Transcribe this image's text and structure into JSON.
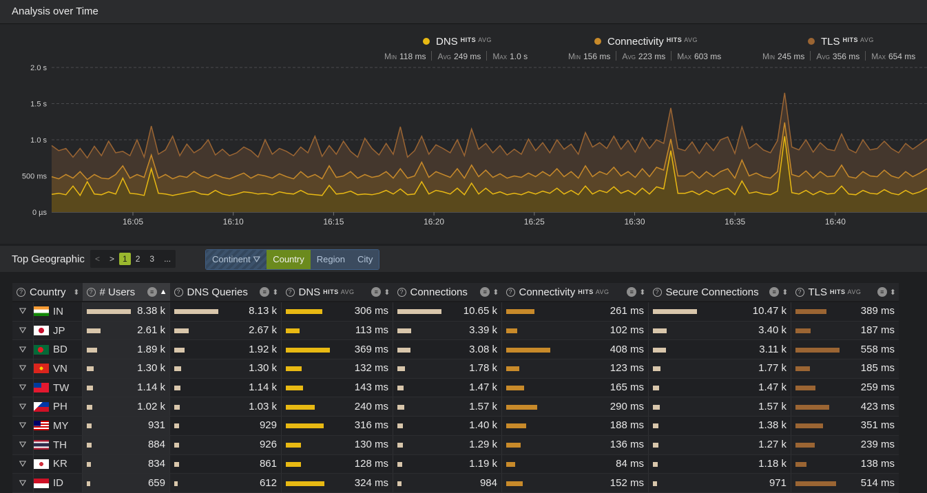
{
  "panel_title": "Analysis over Time",
  "legend": [
    {
      "name": "DNS",
      "sup": "HITS",
      "sup2": "AVG",
      "color": "#e8b913",
      "min": "118 ms",
      "avg": "249 ms",
      "max": "1.0 s"
    },
    {
      "name": "Connectivity",
      "sup": "HITS",
      "sup2": "AVG",
      "color": "#c88a2a",
      "min": "156 ms",
      "avg": "223 ms",
      "max": "603 ms"
    },
    {
      "name": "TLS",
      "sup": "HITS",
      "sup2": "AVG",
      "color": "#9b6533",
      "min": "245 ms",
      "avg": "356 ms",
      "max": "654 ms"
    }
  ],
  "stat_labels": {
    "min": "Min",
    "avg": "Avg",
    "max": "Max"
  },
  "chart_data": {
    "type": "area",
    "y_ticks": [
      "2.0 s",
      "1.5 s",
      "1.0 s",
      "500 ms",
      "0 µs"
    ],
    "y_tick_values": [
      2000,
      1500,
      1000,
      500,
      0
    ],
    "x_ticks": [
      "16:05",
      "16:10",
      "16:15",
      "16:20",
      "16:25",
      "16:30",
      "16:35",
      "16:40"
    ],
    "ylim": [
      0,
      2000
    ],
    "series": [
      {
        "name": "DNS",
        "color": "#e8b913",
        "values": [
          245,
          260,
          240,
          360,
          230,
          420,
          250,
          240,
          280,
          250,
          470,
          260,
          250,
          230,
          600,
          260,
          250,
          230,
          250,
          270,
          290,
          250,
          240,
          300,
          250,
          230,
          250,
          280,
          270,
          250,
          260,
          240,
          280,
          260,
          250,
          300,
          250,
          240,
          230,
          370,
          250,
          260,
          290,
          240,
          250,
          240,
          260,
          300,
          250,
          320,
          240,
          250,
          420,
          250,
          300,
          280,
          250,
          330,
          240,
          400,
          250,
          330,
          250,
          280,
          240,
          260,
          240,
          280,
          250,
          290,
          260,
          330,
          250,
          300,
          240,
          360,
          250,
          300,
          270,
          350,
          260,
          300,
          240,
          330,
          250,
          350,
          320,
          850,
          260,
          260,
          290,
          240,
          300,
          250,
          300,
          330,
          240,
          430,
          260,
          280,
          250,
          240,
          290,
          1050,
          270,
          250,
          300,
          240,
          290,
          250,
          260,
          360,
          250,
          240,
          300,
          260,
          250,
          310,
          260,
          240,
          300,
          250,
          280,
          330
        ]
      },
      {
        "name": "Connectivity",
        "color": "#c88a2a",
        "values": [
          490,
          460,
          520,
          470,
          560,
          450,
          520,
          470,
          460,
          520,
          640,
          470,
          520,
          480,
          790,
          470,
          520,
          460,
          500,
          480,
          560,
          500,
          470,
          520,
          480,
          460,
          500,
          540,
          470,
          520,
          500,
          470,
          530,
          490,
          460,
          560,
          480,
          520,
          460,
          640,
          480,
          500,
          560,
          470,
          520,
          480,
          500,
          560,
          470,
          600,
          470,
          500,
          690,
          480,
          560,
          520,
          480,
          600,
          470,
          650,
          490,
          580,
          480,
          530,
          470,
          500,
          480,
          540,
          490,
          560,
          500,
          600,
          490,
          560,
          470,
          640,
          490,
          560,
          520,
          620,
          500,
          560,
          480,
          600,
          490,
          620,
          580,
          1010,
          500,
          500,
          560,
          470,
          560,
          490,
          560,
          600,
          470,
          720,
          500,
          540,
          490,
          470,
          560,
          1240,
          520,
          490,
          570,
          470,
          560,
          490,
          500,
          650,
          490,
          470,
          560,
          500,
          490,
          580,
          500,
          470,
          560,
          490,
          540,
          600
        ]
      },
      {
        "name": "TLS",
        "color": "#9b6533",
        "values": [
          920,
          850,
          880,
          760,
          880,
          750,
          910,
          780,
          980,
          820,
          840,
          780,
          1000,
          760,
          1190,
          800,
          860,
          1050,
          780,
          940,
          820,
          880,
          1000,
          790,
          870,
          780,
          820,
          900,
          850,
          760,
          1000,
          800,
          880,
          840,
          780,
          900,
          820,
          1050,
          770,
          920,
          800,
          980,
          840,
          760,
          1020,
          880,
          790,
          950,
          800,
          1180,
          760,
          850,
          1050,
          800,
          930,
          880,
          820,
          1000,
          780,
          1150,
          870,
          950,
          820,
          920,
          790,
          870,
          800,
          1010,
          850,
          960,
          820,
          1000,
          870,
          940,
          800,
          1100,
          900,
          960,
          880,
          1050,
          870,
          990,
          830,
          1030,
          880,
          1000,
          950,
          1440,
          880,
          850,
          970,
          810,
          960,
          850,
          1000,
          1040,
          810,
          1180,
          880,
          950,
          860,
          820,
          990,
          1650,
          900,
          860,
          1000,
          830,
          960,
          870,
          850,
          1080,
          870,
          820,
          1000,
          860,
          880,
          980,
          880,
          820,
          950,
          870,
          940,
          1010
        ]
      }
    ]
  },
  "geo": {
    "title": "Top Geographic",
    "pager": [
      "<",
      ">",
      "1",
      "2",
      "3",
      "..."
    ],
    "segments": [
      "Continent",
      "Country",
      "Region",
      "City"
    ],
    "columns": [
      {
        "label": "Country"
      },
      {
        "label": "# Users"
      },
      {
        "label": "DNS Queries"
      },
      {
        "label": "DNS",
        "sup": "HITS",
        "sup2": "AVG"
      },
      {
        "label": "Connections"
      },
      {
        "label": "Connectivity",
        "sup": "HITS",
        "sup2": "AVG"
      },
      {
        "label": "Secure Connections"
      },
      {
        "label": "TLS",
        "sup": "HITS",
        "sup2": "AVG"
      }
    ],
    "rows": [
      {
        "code": "IN",
        "users": "8.38 k",
        "users_f": 1.0,
        "dnsq": "8.13 k",
        "dnsq_f": 1.0,
        "dns": "306 ms",
        "dns_f": 0.83,
        "conn": "10.65 k",
        "conn_f": 1.0,
        "cty": "261 ms",
        "cty_f": 0.64,
        "sec": "10.47 k",
        "sec_f": 1.0,
        "tls": "389 ms",
        "tls_f": 0.7
      },
      {
        "code": "JP",
        "users": "2.61 k",
        "users_f": 0.31,
        "dnsq": "2.67 k",
        "dnsq_f": 0.33,
        "dns": "113 ms",
        "dns_f": 0.31,
        "conn": "3.39 k",
        "conn_f": 0.32,
        "cty": "102 ms",
        "cty_f": 0.25,
        "sec": "3.40 k",
        "sec_f": 0.32,
        "tls": "187 ms",
        "tls_f": 0.34
      },
      {
        "code": "BD",
        "users": "1.89 k",
        "users_f": 0.23,
        "dnsq": "1.92 k",
        "dnsq_f": 0.24,
        "dns": "369 ms",
        "dns_f": 1.0,
        "conn": "3.08 k",
        "conn_f": 0.29,
        "cty": "408 ms",
        "cty_f": 1.0,
        "sec": "3.11 k",
        "sec_f": 0.3,
        "tls": "558 ms",
        "tls_f": 1.0
      },
      {
        "code": "VN",
        "users": "1.30 k",
        "users_f": 0.16,
        "dnsq": "1.30 k",
        "dnsq_f": 0.16,
        "dns": "132 ms",
        "dns_f": 0.36,
        "conn": "1.78 k",
        "conn_f": 0.17,
        "cty": "123 ms",
        "cty_f": 0.3,
        "sec": "1.77 k",
        "sec_f": 0.17,
        "tls": "185 ms",
        "tls_f": 0.33
      },
      {
        "code": "TW",
        "users": "1.14 k",
        "users_f": 0.14,
        "dnsq": "1.14 k",
        "dnsq_f": 0.14,
        "dns": "143 ms",
        "dns_f": 0.39,
        "conn": "1.47 k",
        "conn_f": 0.14,
        "cty": "165 ms",
        "cty_f": 0.4,
        "sec": "1.47 k",
        "sec_f": 0.14,
        "tls": "259 ms",
        "tls_f": 0.46
      },
      {
        "code": "PH",
        "users": "1.02 k",
        "users_f": 0.12,
        "dnsq": "1.03 k",
        "dnsq_f": 0.13,
        "dns": "240 ms",
        "dns_f": 0.65,
        "conn": "1.57 k",
        "conn_f": 0.15,
        "cty": "290 ms",
        "cty_f": 0.71,
        "sec": "1.57 k",
        "sec_f": 0.15,
        "tls": "423 ms",
        "tls_f": 0.76
      },
      {
        "code": "MY",
        "users": "931",
        "users_f": 0.11,
        "dnsq": "929",
        "dnsq_f": 0.11,
        "dns": "316 ms",
        "dns_f": 0.86,
        "conn": "1.40 k",
        "conn_f": 0.13,
        "cty": "188 ms",
        "cty_f": 0.46,
        "sec": "1.38 k",
        "sec_f": 0.13,
        "tls": "351 ms",
        "tls_f": 0.63
      },
      {
        "code": "TH",
        "users": "884",
        "users_f": 0.11,
        "dnsq": "926",
        "dnsq_f": 0.11,
        "dns": "130 ms",
        "dns_f": 0.35,
        "conn": "1.29 k",
        "conn_f": 0.12,
        "cty": "136 ms",
        "cty_f": 0.33,
        "sec": "1.27 k",
        "sec_f": 0.12,
        "tls": "239 ms",
        "tls_f": 0.43
      },
      {
        "code": "KR",
        "users": "834",
        "users_f": 0.1,
        "dnsq": "861",
        "dnsq_f": 0.11,
        "dns": "128 ms",
        "dns_f": 0.35,
        "conn": "1.19 k",
        "conn_f": 0.11,
        "cty": "84 ms",
        "cty_f": 0.21,
        "sec": "1.18 k",
        "sec_f": 0.11,
        "tls": "138 ms",
        "tls_f": 0.25
      },
      {
        "code": "ID",
        "users": "659",
        "users_f": 0.08,
        "dnsq": "612",
        "dnsq_f": 0.08,
        "dns": "324 ms",
        "dns_f": 0.88,
        "conn": "984",
        "conn_f": 0.09,
        "cty": "152 ms",
        "cty_f": 0.37,
        "sec": "971",
        "sec_f": 0.09,
        "tls": "514 ms",
        "tls_f": 0.92
      }
    ],
    "colors": {
      "count_bar": "#d8c6ab",
      "dns_bar": "#e8b913",
      "cty_bar": "#c88a2a",
      "tls_bar": "#9b6533"
    }
  }
}
